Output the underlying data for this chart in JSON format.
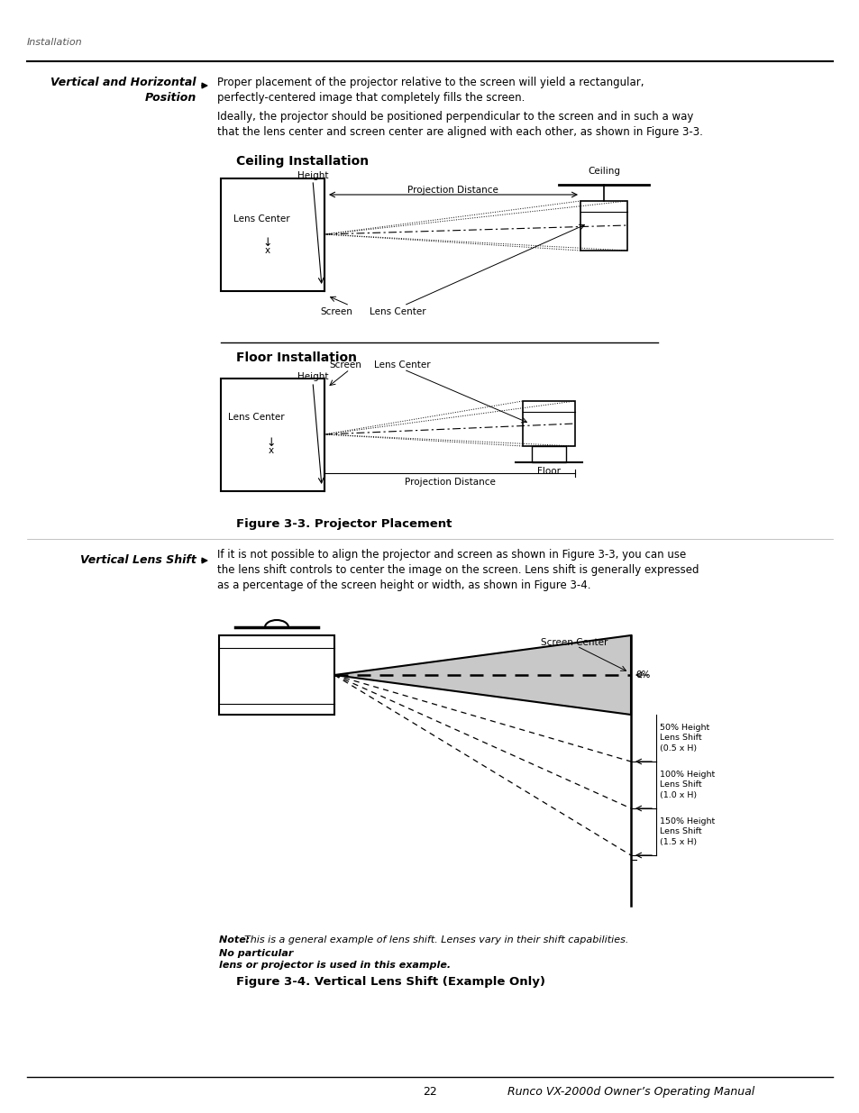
{
  "bg_color": "#ffffff",
  "page_width": 9.54,
  "page_height": 12.35,
  "dpi": 100,
  "header_text": "Installation",
  "section1_label": "Vertical and Horizontal\nPosition",
  "text1": "Proper placement of the projector relative to the screen will yield a rectangular,\nperfectly-centered image that completely fills the screen.",
  "text2": "Ideally, the projector should be positioned perpendicular to the screen and in such a way\nthat the lens center and screen center are aligned with each other, as shown in Figure 3-3.",
  "ceiling_title": "Ceiling Installation",
  "floor_title": "Floor Installation",
  "fig33_caption": "Figure 3-3. Projector Placement",
  "section2_label": "Vertical Lens Shift",
  "text3": "If it is not possible to align the projector and screen as shown in Figure 3-3, you can use\nthe lens shift controls to center the image on the screen. Lens shift is generally expressed\nas a percentage of the screen height or width, as shown in Figure 3-4.",
  "fig34_caption": "Figure 3-4. Vertical Lens Shift (Example Only)",
  "note_line1": "Note: This is a general example of lens shift. Lenses vary in their shift capabilities. No particular",
  "note_line2": "lens or projector is used in this example.",
  "footer_page": "22",
  "footer_manual": "Runco VX-2000d Owner’s Operating Manual",
  "gray_cone": "#c8c8c8"
}
